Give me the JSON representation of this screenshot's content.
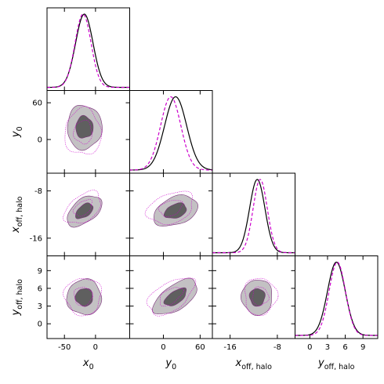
{
  "chart_data": {
    "type": "corner",
    "params": [
      {
        "key": "x0",
        "label": "x",
        "sub": "0",
        "range": [
          -78,
          55
        ],
        "ticks": [
          -50,
          0
        ],
        "mean": -18,
        "sd": 14
      },
      {
        "key": "y0",
        "label": "y",
        "sub": "0",
        "range": [
          -55,
          80
        ],
        "ticks": [
          0,
          60
        ],
        "mean": 20,
        "sd": 18
      },
      {
        "key": "xoff",
        "label": "x",
        "sub": "off, halo",
        "range": [
          -19,
          -5
        ],
        "ticks": [
          -16,
          -8
        ],
        "mean": -11.4,
        "sd": 1.3
      },
      {
        "key": "yoff",
        "label": "y",
        "sub": "off, halo",
        "range": [
          -2.5,
          11.5
        ],
        "ticks": [
          0,
          3,
          6,
          9
        ],
        "mean": 4.5,
        "sd": 1.5
      }
    ],
    "series": [
      {
        "name": "",
        "color": "#000000",
        "style": "solid"
      },
      {
        "name": "",
        "color": "#cc00cc",
        "style": "dashed"
      }
    ],
    "dashed_offsets": {
      "x0": -2,
      "y0": -8,
      "xoff": 0.5,
      "yoff": 0.15
    },
    "dashed_width_scale": 0.92,
    "correlations": {
      "y0|x0": 0.0,
      "xoff|x0": 0.5,
      "xoff|y0": 0.35,
      "yoff|x0": 0.0,
      "yoff|y0": 0.6,
      "yoff|xoff": 0.0
    },
    "contour_levels": {
      "inner": 1.0,
      "outer": 2.0
    },
    "colors": {
      "inner_fill": "#5f5f5f",
      "outer_fill": "#c3c1c3",
      "contour_line": "#7b2f7b",
      "dashed": "#cc00cc",
      "solid": "#000000"
    },
    "grid": false
  }
}
